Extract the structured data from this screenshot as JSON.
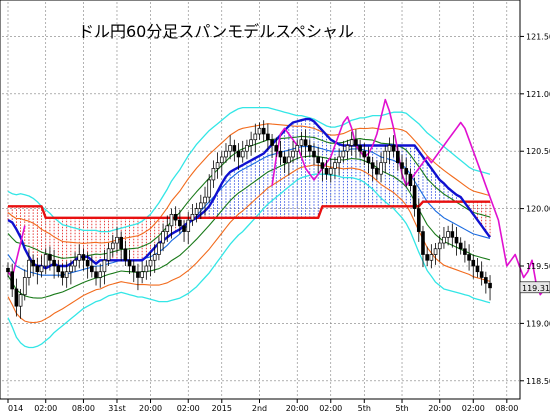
{
  "chart_data": {
    "type": "line",
    "title": "ドル円60分足スパンモデルスペシャル",
    "y_axis": {
      "ticks": [
        "121.50",
        "121.00",
        "120.50",
        "120.00",
        "119.50",
        "119.00",
        "118.50"
      ],
      "tick_values": [
        121.5,
        121.0,
        120.5,
        120.0,
        119.5,
        119.0,
        118.5
      ],
      "ylim": [
        118.35,
        121.8
      ]
    },
    "x_axis": {
      "ticks": [
        "014",
        "02:00",
        "08:00",
        "31st",
        "20:00",
        "02:00",
        "2015",
        "2nd",
        "20:00",
        "02:00",
        "5th",
        "5th",
        "20:00",
        "02:00",
        "08:00"
      ],
      "tick_index": [
        0,
        9,
        18,
        26,
        34,
        43,
        51,
        60,
        69,
        77,
        85,
        94,
        103,
        111,
        119
      ],
      "n": 121
    },
    "last_price": "119.31",
    "colors": {
      "bb3": "#33e6e6",
      "bb2": "#f26b1d",
      "bb1": "#1a7a1a",
      "mid": "#1a6be0",
      "red": "#e81010",
      "blue": "#1010d0",
      "chikou": "#e010d0",
      "candle": "#000000",
      "fill_red": "#e01010",
      "fill_blue": "#1a3be0"
    },
    "close": [
      119.45,
      119.3,
      119.15,
      119.25,
      119.4,
      119.55,
      119.5,
      119.45,
      119.5,
      119.6,
      119.55,
      119.5,
      119.45,
      119.4,
      119.45,
      119.5,
      119.55,
      119.6,
      119.55,
      119.5,
      119.45,
      119.4,
      119.45,
      119.55,
      119.65,
      119.7,
      119.75,
      119.65,
      119.55,
      119.5,
      119.45,
      119.4,
      119.45,
      119.5,
      119.55,
      119.6,
      119.7,
      119.8,
      119.85,
      119.95,
      119.9,
      119.85,
      119.8,
      119.9,
      119.95,
      120.0,
      120.05,
      120.1,
      120.25,
      120.35,
      120.4,
      120.45,
      120.5,
      120.55,
      120.5,
      120.45,
      120.5,
      120.55,
      120.6,
      120.65,
      120.7,
      120.65,
      120.6,
      120.55,
      120.5,
      120.45,
      120.4,
      120.45,
      120.5,
      120.55,
      120.6,
      120.55,
      120.5,
      120.45,
      120.4,
      120.35,
      120.3,
      120.35,
      120.4,
      120.45,
      120.5,
      120.55,
      120.6,
      120.55,
      120.5,
      120.45,
      120.4,
      120.35,
      120.3,
      120.4,
      120.5,
      120.55,
      120.5,
      120.4,
      120.35,
      120.3,
      120.2,
      120.0,
      119.8,
      119.6,
      119.55,
      119.6,
      119.65,
      119.7,
      119.75,
      119.8,
      119.75,
      119.7,
      119.65,
      119.6,
      119.55,
      119.5,
      119.45,
      119.4,
      119.35,
      119.31
    ],
    "mid": [
      119.6,
      119.55,
      119.5,
      119.48,
      119.46,
      119.45,
      119.44,
      119.43,
      119.42,
      119.42,
      119.42,
      119.42,
      119.42,
      119.42,
      119.43,
      119.44,
      119.45,
      119.46,
      119.47,
      119.48,
      119.49,
      119.5,
      119.5,
      119.51,
      119.52,
      119.53,
      119.54,
      119.55,
      119.55,
      119.55,
      119.55,
      119.55,
      119.56,
      119.57,
      119.58,
      119.6,
      119.62,
      119.65,
      119.68,
      119.72,
      119.75,
      119.78,
      119.82,
      119.86,
      119.9,
      119.94,
      119.98,
      120.02,
      120.06,
      120.1,
      120.14,
      120.18,
      120.22,
      120.26,
      120.29,
      120.32,
      120.34,
      120.36,
      120.38,
      120.4,
      120.42,
      120.44,
      120.46,
      120.47,
      120.48,
      120.49,
      120.5,
      120.51,
      120.52,
      120.53,
      120.54,
      120.54,
      120.54,
      120.54,
      120.53,
      120.52,
      120.51,
      120.5,
      120.5,
      120.5,
      120.5,
      120.51,
      120.52,
      120.52,
      120.52,
      120.51,
      120.5,
      120.49,
      120.47,
      120.45,
      120.44,
      120.43,
      120.42,
      120.4,
      120.38,
      120.35,
      120.3,
      120.24,
      120.18,
      120.12,
      120.06,
      120.02,
      119.98,
      119.95,
      119.92,
      119.9,
      119.88,
      119.86,
      119.84,
      119.82,
      119.8,
      119.78,
      119.77,
      119.76,
      119.75,
      119.74
    ],
    "bb_width": [
      0.55,
      0.58,
      0.62,
      0.65,
      0.66,
      0.66,
      0.65,
      0.63,
      0.6,
      0.57,
      0.54,
      0.5,
      0.47,
      0.44,
      0.42,
      0.4,
      0.38,
      0.36,
      0.34,
      0.33,
      0.32,
      0.31,
      0.3,
      0.29,
      0.28,
      0.28,
      0.28,
      0.28,
      0.29,
      0.3,
      0.31,
      0.32,
      0.33,
      0.35,
      0.37,
      0.4,
      0.43,
      0.46,
      0.49,
      0.52,
      0.54,
      0.56,
      0.58,
      0.6,
      0.61,
      0.62,
      0.62,
      0.62,
      0.62,
      0.61,
      0.6,
      0.59,
      0.58,
      0.57,
      0.56,
      0.55,
      0.54,
      0.52,
      0.5,
      0.48,
      0.46,
      0.44,
      0.42,
      0.4,
      0.38,
      0.36,
      0.34,
      0.32,
      0.3,
      0.28,
      0.27,
      0.26,
      0.25,
      0.24,
      0.23,
      0.22,
      0.21,
      0.21,
      0.21,
      0.22,
      0.23,
      0.24,
      0.25,
      0.26,
      0.27,
      0.28,
      0.3,
      0.32,
      0.34,
      0.36,
      0.38,
      0.4,
      0.42,
      0.44,
      0.46,
      0.48,
      0.5,
      0.53,
      0.56,
      0.58,
      0.6,
      0.61,
      0.62,
      0.62,
      0.62,
      0.61,
      0.6,
      0.59,
      0.58,
      0.57,
      0.56,
      0.56,
      0.56,
      0.56,
      0.56,
      0.56
    ],
    "red_span": [
      120.02,
      120.02,
      120.02,
      120.02,
      120.02,
      120.02,
      120.02,
      120.02,
      120.02,
      119.92,
      119.92,
      119.92,
      119.92,
      119.92,
      119.92,
      119.92,
      119.92,
      119.92,
      119.92,
      119.92,
      119.92,
      119.92,
      119.92,
      119.92,
      119.92,
      119.92,
      119.92,
      119.92,
      119.92,
      119.92,
      119.92,
      119.92,
      119.92,
      119.92,
      119.92,
      119.92,
      119.92,
      119.92,
      119.92,
      119.92,
      119.92,
      119.92,
      119.92,
      119.92,
      119.92,
      119.92,
      119.92,
      119.92,
      119.92,
      119.92,
      119.92,
      119.92,
      119.92,
      119.92,
      119.92,
      119.92,
      119.92,
      119.92,
      119.92,
      119.92,
      119.92,
      119.92,
      119.92,
      119.92,
      119.92,
      119.92,
      119.92,
      119.92,
      119.92,
      119.92,
      119.92,
      119.92,
      119.92,
      119.92,
      119.92,
      120.02,
      120.02,
      120.02,
      120.02,
      120.02,
      120.02,
      120.02,
      120.02,
      120.02,
      120.02,
      120.02,
      120.02,
      120.02,
      120.02,
      120.02,
      120.02,
      120.02,
      120.02,
      120.02,
      120.02,
      120.02,
      120.02,
      120.02,
      120.02,
      120.06,
      120.06,
      120.06,
      120.06,
      120.06,
      120.06,
      120.06,
      120.06,
      120.06,
      120.06,
      120.06,
      120.06,
      120.06,
      120.06,
      120.06,
      120.06,
      120.06
    ],
    "blue_span": [
      119.9,
      119.88,
      119.82,
      119.75,
      119.65,
      119.58,
      119.52,
      119.5,
      119.5,
      119.48,
      119.5,
      119.52,
      119.5,
      119.5,
      119.5,
      119.52,
      119.55,
      119.58,
      119.58,
      119.58,
      119.55,
      119.52,
      119.55,
      119.55,
      119.55,
      119.55,
      119.55,
      119.55,
      119.55,
      119.55,
      119.55,
      119.55,
      119.55,
      119.58,
      119.62,
      119.66,
      119.7,
      119.72,
      119.75,
      119.78,
      119.8,
      119.82,
      119.85,
      119.88,
      119.9,
      119.92,
      119.95,
      119.98,
      120.02,
      120.08,
      120.15,
      120.22,
      120.28,
      120.32,
      120.34,
      120.36,
      120.38,
      120.4,
      120.42,
      120.44,
      120.46,
      120.48,
      120.52,
      120.56,
      120.6,
      120.64,
      120.68,
      120.72,
      120.75,
      120.76,
      120.77,
      120.78,
      120.78,
      120.76,
      120.72,
      120.68,
      120.64,
      120.6,
      120.58,
      120.56,
      120.55,
      120.55,
      120.55,
      120.55,
      120.55,
      120.55,
      120.55,
      120.55,
      120.55,
      120.55,
      120.55,
      120.55,
      120.55,
      120.55,
      120.55,
      120.55,
      120.55,
      120.55,
      120.5,
      120.45,
      120.4,
      120.35,
      120.3,
      120.25,
      120.22,
      120.18,
      120.15,
      120.12,
      120.1,
      120.05,
      120.0,
      119.95,
      119.9,
      119.85,
      119.8,
      119.75
    ],
    "chikou_start": 0,
    "chikou": [
      119.45,
      119.4,
      119.55,
      119.7,
      119.85,
      120.0,
      120.2,
      120.45,
      120.65,
      120.7,
      120.65,
      120.6,
      120.55,
      120.45,
      120.35,
      120.3,
      120.25,
      120.3,
      120.35,
      120.4,
      120.45,
      120.55,
      120.65,
      120.75,
      120.8,
      120.7,
      120.55,
      120.5,
      120.45,
      120.48,
      120.55,
      120.65,
      120.8,
      120.95,
      120.85,
      120.7,
      120.5,
      120.3,
      120.2,
      120.25,
      120.3,
      120.35,
      120.4,
      120.45,
      120.4,
      120.45,
      120.5,
      120.55,
      120.6,
      120.65,
      120.7,
      120.75,
      120.7,
      120.6,
      120.5,
      120.4,
      120.3,
      120.2,
      120.1,
      120.0,
      119.9,
      119.7,
      119.5,
      119.55,
      119.6,
      119.5,
      119.4,
      119.45,
      119.55,
      119.35,
      119.25,
      119.3
    ],
    "chikou_gap": [
      5,
      63
    ]
  }
}
